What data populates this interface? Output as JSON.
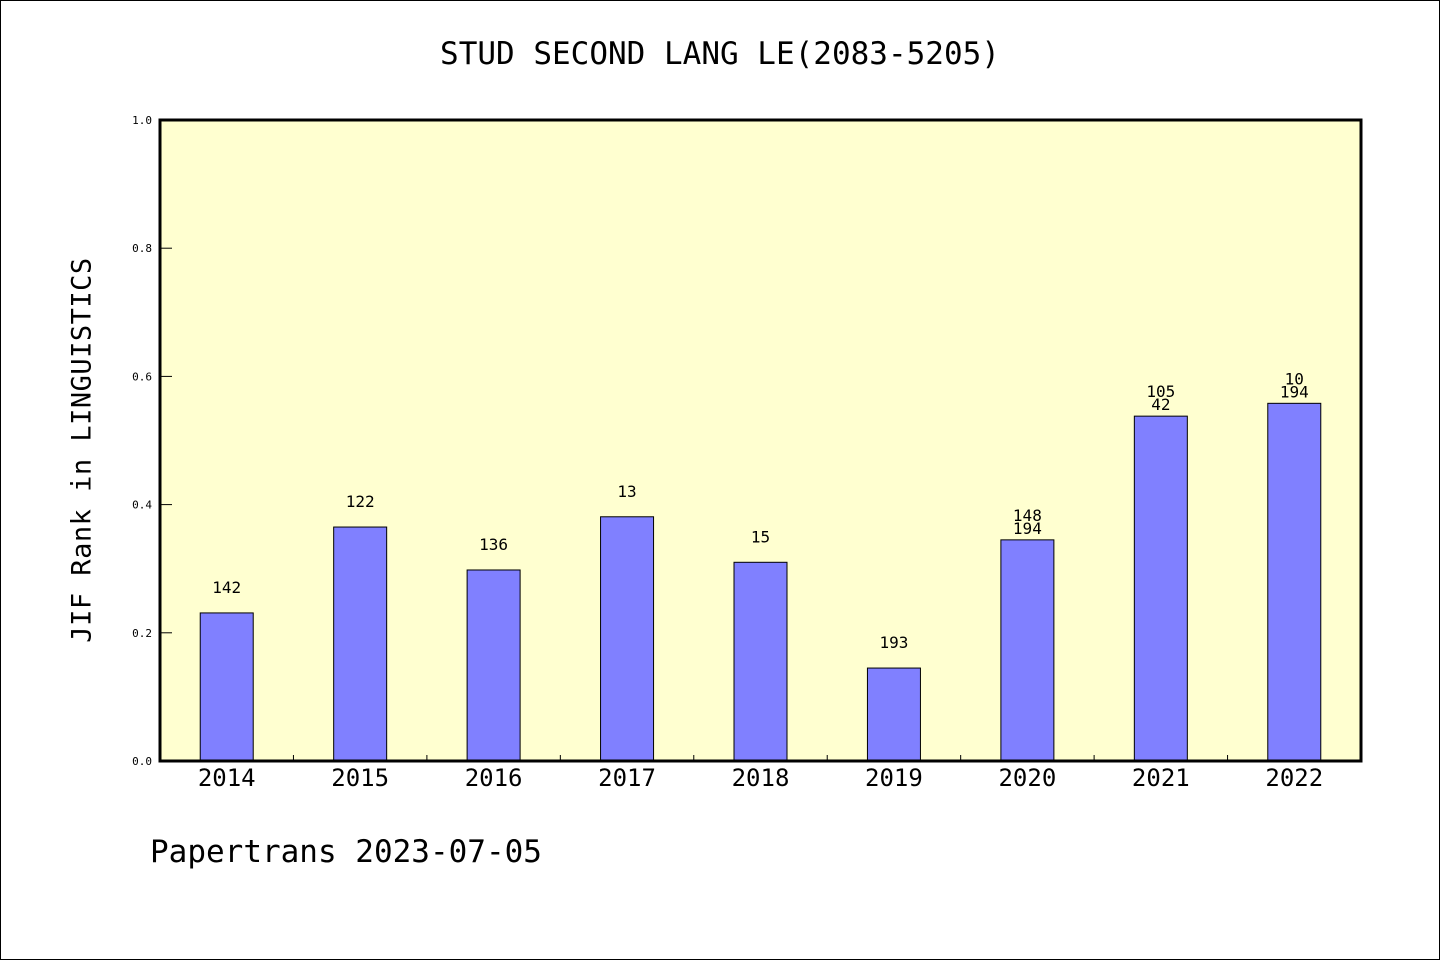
{
  "title": "STUD SECOND LANG LE(2083-5205)",
  "footer": "Papertrans 2023-07-05",
  "colors": {
    "plot_bg": "#FFFFD0",
    "bar": "#8080FF",
    "frame": "#000000"
  },
  "chart_data": {
    "type": "bar",
    "title": "STUD SECOND LANG LE(2083-5205)",
    "xlabel": "",
    "ylabel": "JIF Rank in LINGUISTICS",
    "ylim": [
      0,
      1.0
    ],
    "yticks": [
      "0.0",
      "0.2",
      "0.4",
      "0.6",
      "0.8",
      "1.0"
    ],
    "grid": false,
    "categories": [
      "2014",
      "2015",
      "2016",
      "2017",
      "2018",
      "2019",
      "2020",
      "2021",
      "2022"
    ],
    "values": [
      0.231,
      0.365,
      0.298,
      0.381,
      0.31,
      0.145,
      0.345,
      0.538,
      0.558
    ],
    "annotations": [
      [
        "142"
      ],
      [
        "122"
      ],
      [
        "136"
      ],
      [
        "13"
      ],
      [
        "15"
      ],
      [
        "193"
      ],
      [
        "148",
        "194"
      ],
      [
        "105",
        "42"
      ],
      [
        "10",
        "194"
      ]
    ]
  }
}
